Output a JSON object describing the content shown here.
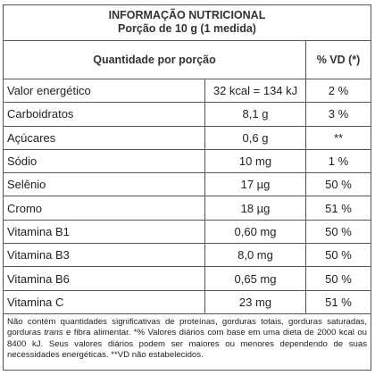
{
  "header": {
    "title": "INFORMAÇÃO NUTRICIONAL",
    "subtitle": "Porção de 10 g (1 medida)"
  },
  "columns": {
    "quantity_header": "Quantidade por porção",
    "vd_header": "% VD (*)"
  },
  "rows": [
    {
      "name": "Valor energético",
      "quantity": "32 kcal = 134 kJ",
      "vd": "2 %"
    },
    {
      "name": "Carboidratos",
      "quantity": "8,1 g",
      "vd": "3 %"
    },
    {
      "name": "Açúcares",
      "quantity": "0,6 g",
      "vd": "**"
    },
    {
      "name": "Sódio",
      "quantity": "10 mg",
      "vd": "1 %"
    },
    {
      "name": "Selênio",
      "quantity": "17 µg",
      "vd": "50 %"
    },
    {
      "name": "Cromo",
      "quantity": "18 µg",
      "vd": "51 %"
    },
    {
      "name": "Vitamina B1",
      "quantity": "0,60 mg",
      "vd": "50 %"
    },
    {
      "name": "Vitamina B3",
      "quantity": "8,0 mg",
      "vd": "50 %"
    },
    {
      "name": "Vitamina B6",
      "quantity": "0,65 mg",
      "vd": "50 %"
    },
    {
      "name": "Vitamina C",
      "quantity": "23 mg",
      "vd": "51 %"
    }
  ],
  "footnote": {
    "part1": "Não contém quantidades significativas de proteínas, gorduras totais, gorduras saturadas, gorduras ",
    "italic": "trans",
    "part2": " e fibra alimentar. *% Valores diários com base em uma dieta de 2000 kcal ou 8400 kJ. Seus valores diários podem ser maiores ou menores dependendo de suas necessidades energéticas. **VD não estabelecidos."
  }
}
